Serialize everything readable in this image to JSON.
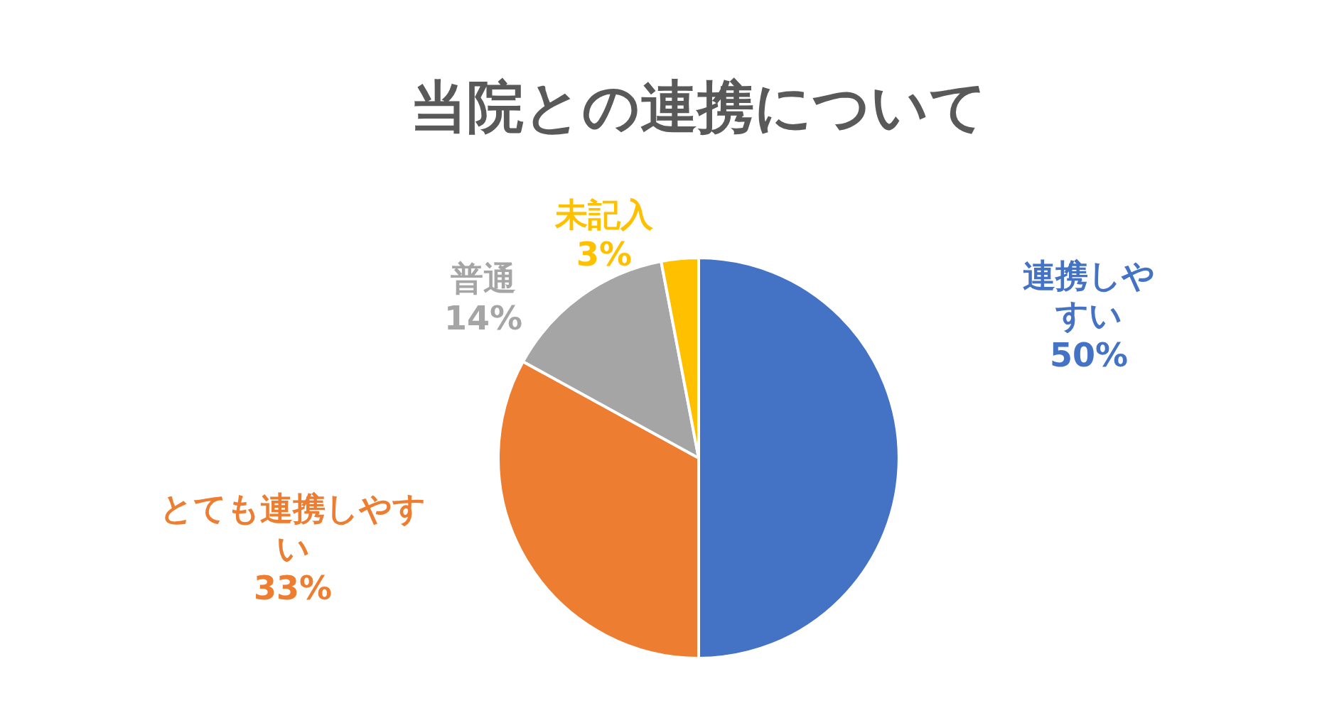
{
  "chart_data": {
    "type": "pie",
    "title": "当院との連携について",
    "categories": [
      "連携しやすい",
      "とても連携しやすい",
      "普通",
      "未記入"
    ],
    "values": [
      50,
      33,
      14,
      3
    ],
    "colors": [
      "#4472c4",
      "#ed7d31",
      "#a5a5a5",
      "#ffc000"
    ],
    "value_labels": [
      "50%",
      "33%",
      "14%",
      "3%"
    ]
  }
}
